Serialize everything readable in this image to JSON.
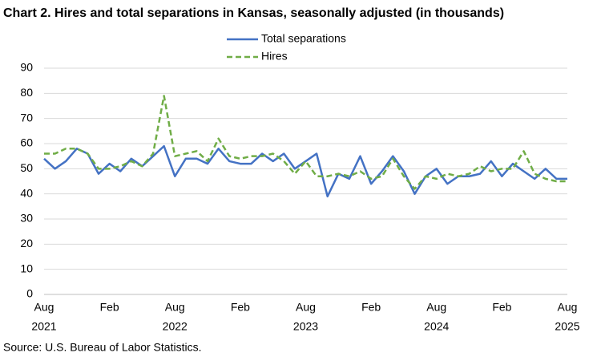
{
  "chart_data": {
    "type": "line",
    "title": "Chart 2. Hires and total separations in Kansas, seasonally adjusted (in thousands)",
    "source": "Source: U.S. Bureau of Labor Statistics.",
    "categories": [
      "Aug",
      null,
      null,
      null,
      null,
      null,
      "Feb",
      null,
      null,
      null,
      null,
      null,
      "Aug",
      null,
      null,
      null,
      null,
      null,
      "Feb",
      null,
      null,
      null,
      null,
      null,
      "Aug",
      null,
      null,
      null,
      null,
      null,
      "Feb",
      null,
      null,
      null,
      null,
      null,
      "Aug",
      null,
      null,
      null,
      null,
      null,
      "Feb",
      null,
      null,
      null,
      null,
      null,
      "Aug"
    ],
    "category_years": [
      "2021",
      null,
      null,
      null,
      null,
      null,
      null,
      null,
      null,
      null,
      null,
      null,
      "2022",
      null,
      null,
      null,
      null,
      null,
      null,
      null,
      null,
      null,
      null,
      null,
      "2023",
      null,
      null,
      null,
      null,
      null,
      null,
      null,
      null,
      null,
      null,
      null,
      "2024",
      null,
      null,
      null,
      null,
      null,
      null,
      null,
      null,
      null,
      null,
      null,
      "2025"
    ],
    "series": [
      {
        "name": "Total separations",
        "color": "#4472c4",
        "dash": false,
        "values": [
          54,
          50,
          53,
          58,
          56,
          48,
          52,
          49,
          54,
          51,
          55,
          59,
          47,
          54,
          54,
          52,
          58,
          53,
          52,
          52,
          56,
          53,
          56,
          50,
          53,
          56,
          39,
          48,
          46,
          55,
          44,
          49,
          55,
          49,
          40,
          47,
          50,
          44,
          47,
          47,
          48,
          53,
          47,
          52,
          49,
          46,
          50,
          46,
          46
        ]
      },
      {
        "name": "Hires",
        "color": "#70ad47",
        "dash": true,
        "values": [
          56,
          56,
          58,
          58,
          56,
          50,
          50,
          51,
          53,
          51,
          56,
          79,
          55,
          56,
          57,
          53,
          62,
          55,
          54,
          55,
          55,
          56,
          53,
          48,
          53,
          47,
          47,
          48,
          47,
          49,
          46,
          47,
          54,
          47,
          42,
          47,
          46,
          48,
          47,
          48,
          51,
          49,
          50,
          50,
          57,
          48,
          46,
          45,
          45
        ]
      }
    ],
    "ylim": [
      0,
      90
    ],
    "yticks": [
      0,
      10,
      20,
      30,
      40,
      50,
      60,
      70,
      80,
      90
    ],
    "grid": true
  }
}
